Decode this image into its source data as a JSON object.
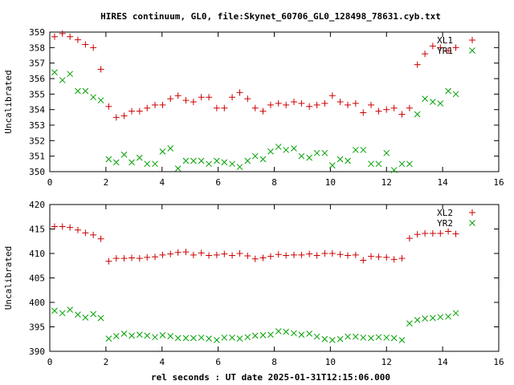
{
  "chart_data": {
    "title": "HIRES continuum, GL0, file:Skynet_60706_GL0_128498_78631.cyb.txt",
    "xlabel": "rel seconds : UT date 2025-01-31T12:15:06.000",
    "panels": [
      {
        "type": "scatter",
        "ylabel": "Uncalibrated",
        "xlim": [
          0,
          16
        ],
        "ylim": [
          350,
          359
        ],
        "xticks": [
          "0",
          "2",
          "4",
          "6",
          "8",
          "10",
          "12",
          "14",
          "16"
        ],
        "yticks": [
          "350",
          "351",
          "352",
          "353",
          "354",
          "355",
          "356",
          "357",
          "358",
          "359"
        ],
        "legend_position": "top-right",
        "series": [
          {
            "name": "XL1",
            "marker": "+",
            "color": "#cc0000",
            "x": [
              0.17,
              0.45,
              0.72,
              1.0,
              1.27,
              1.55,
              1.82,
              2.1,
              2.37,
              2.65,
              2.92,
              3.2,
              3.47,
              3.75,
              4.02,
              4.3,
              4.57,
              4.85,
              5.12,
              5.4,
              5.67,
              5.95,
              6.22,
              6.5,
              6.77,
              7.05,
              7.32,
              7.6,
              7.87,
              8.15,
              8.42,
              8.7,
              8.97,
              9.25,
              9.52,
              9.8,
              10.07,
              10.35,
              10.62,
              10.9,
              11.17,
              11.45,
              11.72,
              12.0,
              12.27,
              12.55,
              12.82,
              13.1,
              13.37,
              13.65,
              13.92,
              14.2,
              14.47
            ],
            "y": [
              358.7,
              358.9,
              358.7,
              358.5,
              358.2,
              358.0,
              356.6,
              354.2,
              353.5,
              353.6,
              353.9,
              353.9,
              354.1,
              354.3,
              354.3,
              354.7,
              354.9,
              354.6,
              354.5,
              354.8,
              354.8,
              354.1,
              354.1,
              354.8,
              355.1,
              354.7,
              354.1,
              353.9,
              354.3,
              354.4,
              354.3,
              354.5,
              354.4,
              354.2,
              354.3,
              354.4,
              354.9,
              354.5,
              354.3,
              354.4,
              353.8,
              354.3,
              353.9,
              354.0,
              354.1,
              353.7,
              354.1,
              356.9,
              357.6,
              358.1,
              358.0,
              357.8,
              358.0
            ]
          },
          {
            "name": "YR1",
            "marker": "x",
            "color": "#00a000",
            "x": [
              0.17,
              0.45,
              0.72,
              1.0,
              1.27,
              1.55,
              1.82,
              2.1,
              2.37,
              2.65,
              2.92,
              3.2,
              3.47,
              3.75,
              4.02,
              4.3,
              4.57,
              4.85,
              5.12,
              5.4,
              5.67,
              5.95,
              6.22,
              6.5,
              6.77,
              7.05,
              7.32,
              7.6,
              7.87,
              8.15,
              8.42,
              8.7,
              8.97,
              9.25,
              9.52,
              9.8,
              10.07,
              10.35,
              10.62,
              10.9,
              11.17,
              11.45,
              11.72,
              12.0,
              12.27,
              12.55,
              12.82,
              13.1,
              13.37,
              13.65,
              13.92,
              14.2,
              14.47
            ],
            "y": [
              356.4,
              355.9,
              356.3,
              355.2,
              355.2,
              354.8,
              354.6,
              350.8,
              350.6,
              351.1,
              350.6,
              350.9,
              350.5,
              350.5,
              351.3,
              351.5,
              350.2,
              350.7,
              350.7,
              350.7,
              350.5,
              350.7,
              350.6,
              350.5,
              350.3,
              350.7,
              351.0,
              350.8,
              351.3,
              351.6,
              351.4,
              351.5,
              351.0,
              350.9,
              351.2,
              351.2,
              350.4,
              350.8,
              350.7,
              351.4,
              351.4,
              350.5,
              350.5,
              351.2,
              350.1,
              350.5,
              350.5,
              353.7,
              354.7,
              354.5,
              354.4,
              355.2,
              355.0
            ]
          }
        ]
      },
      {
        "type": "scatter",
        "ylabel": "Uncalibrated",
        "xlim": [
          0,
          16
        ],
        "ylim": [
          390,
          420
        ],
        "xticks": [
          "0",
          "2",
          "4",
          "6",
          "8",
          "10",
          "12",
          "14",
          "16"
        ],
        "yticks": [
          "390",
          "395",
          "400",
          "405",
          "410",
          "415",
          "420"
        ],
        "legend_position": "top-right",
        "series": [
          {
            "name": "XL2",
            "marker": "+",
            "color": "#cc0000",
            "x": [
              0.17,
              0.45,
              0.72,
              1.0,
              1.27,
              1.55,
              1.82,
              2.1,
              2.37,
              2.65,
              2.92,
              3.2,
              3.47,
              3.75,
              4.02,
              4.3,
              4.57,
              4.85,
              5.12,
              5.4,
              5.67,
              5.95,
              6.22,
              6.5,
              6.77,
              7.05,
              7.32,
              7.6,
              7.87,
              8.15,
              8.42,
              8.7,
              8.97,
              9.25,
              9.52,
              9.8,
              10.07,
              10.35,
              10.62,
              10.9,
              11.17,
              11.45,
              11.72,
              12.0,
              12.27,
              12.55,
              12.82,
              13.1,
              13.37,
              13.65,
              13.92,
              14.2,
              14.47
            ],
            "y": [
              415.5,
              415.5,
              415.3,
              414.8,
              414.2,
              413.8,
              413.0,
              408.4,
              409.0,
              409.0,
              409.1,
              409.0,
              409.2,
              409.3,
              409.7,
              409.9,
              410.2,
              410.3,
              409.7,
              410.1,
              409.6,
              409.7,
              409.9,
              409.6,
              410.0,
              409.5,
              408.9,
              409.1,
              409.4,
              409.8,
              409.6,
              409.7,
              409.7,
              409.9,
              409.6,
              410.0,
              410.0,
              409.8,
              409.6,
              409.7,
              408.6,
              409.4,
              409.3,
              409.2,
              408.8,
              409.0,
              413.1,
              413.9,
              414.1,
              414.1,
              414.1,
              414.5,
              414.0
            ]
          },
          {
            "name": "YR2",
            "marker": "x",
            "color": "#00a000",
            "x": [
              0.17,
              0.45,
              0.72,
              1.0,
              1.27,
              1.55,
              1.82,
              2.1,
              2.37,
              2.65,
              2.92,
              3.2,
              3.47,
              3.75,
              4.02,
              4.3,
              4.57,
              4.85,
              5.12,
              5.4,
              5.67,
              5.95,
              6.22,
              6.5,
              6.77,
              7.05,
              7.32,
              7.6,
              7.87,
              8.15,
              8.42,
              8.7,
              8.97,
              9.25,
              9.52,
              9.8,
              10.07,
              10.35,
              10.62,
              10.9,
              11.17,
              11.45,
              11.72,
              12.0,
              12.27,
              12.55,
              12.82,
              13.1,
              13.37,
              13.65,
              13.92,
              14.2,
              14.47
            ],
            "y": [
              398.3,
              397.8,
              398.5,
              397.5,
              396.9,
              397.6,
              396.8,
              392.6,
              393.1,
              393.6,
              393.2,
              393.4,
              393.2,
              392.9,
              393.3,
              393.1,
              392.7,
              392.7,
              392.7,
              392.8,
              392.6,
              392.3,
              392.8,
              392.8,
              392.6,
              392.9,
              393.2,
              393.3,
              393.4,
              394.1,
              394.0,
              393.7,
              393.4,
              393.6,
              393.0,
              392.5,
              392.3,
              392.5,
              393.0,
              393.0,
              392.8,
              392.7,
              392.9,
              392.8,
              392.7,
              392.3,
              395.7,
              396.4,
              396.7,
              396.8,
              397.0,
              397.1,
              397.8
            ]
          }
        ]
      }
    ]
  }
}
